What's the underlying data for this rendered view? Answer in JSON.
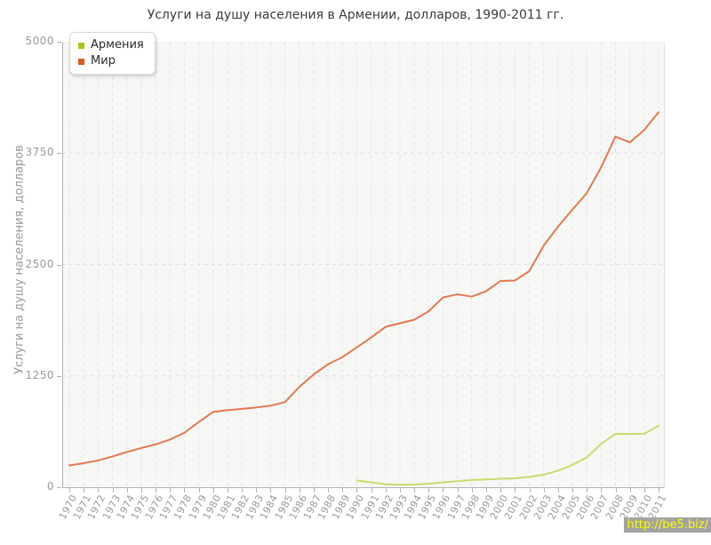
{
  "title": "Услуги на душу населения в Армении, долларов, 1990-2011 гг.",
  "y_axis_label": "Услуги на душу населения, долларов",
  "legend": {
    "items": [
      {
        "label": "Армения",
        "color": "#a6c813"
      },
      {
        "label": "Мир",
        "color": "#dc5a1e"
      }
    ]
  },
  "watermark": {
    "text": "http://be5.biz/",
    "bg": "#a3a3a3",
    "fg": "#fdfd00"
  },
  "chart_data": {
    "type": "line",
    "title": "Услуги на душу населения в Армении, долларов, 1990-2011 гг.",
    "xlabel": "",
    "ylabel": "Услуги на душу населения, долларов",
    "x": [
      1970,
      1971,
      1972,
      1973,
      1974,
      1975,
      1976,
      1977,
      1978,
      1979,
      1980,
      1981,
      1982,
      1983,
      1984,
      1985,
      1986,
      1987,
      1988,
      1989,
      1990,
      1991,
      1992,
      1993,
      1994,
      1995,
      1996,
      1997,
      1998,
      1999,
      2000,
      2001,
      2002,
      2003,
      2004,
      2005,
      2006,
      2007,
      2008,
      2009,
      2010,
      2011
    ],
    "ylim": [
      0,
      5000
    ],
    "yticks": [
      0,
      1250,
      2500,
      3750,
      5000
    ],
    "grid": true,
    "legend_position": "top-left",
    "series": [
      {
        "id": "armenia",
        "name": "Армения",
        "legend_color": "#a6c813",
        "line_color": "#c6dd6b",
        "values": [
          null,
          null,
          null,
          null,
          null,
          null,
          null,
          null,
          null,
          null,
          null,
          null,
          null,
          null,
          null,
          null,
          null,
          null,
          null,
          null,
          75,
          55,
          32,
          27,
          30,
          40,
          55,
          68,
          80,
          87,
          95,
          100,
          116,
          140,
          185,
          250,
          335,
          485,
          600,
          598,
          600,
          690
        ]
      },
      {
        "id": "mir",
        "name": "Мир",
        "legend_color": "#dc5a1e",
        "line_color": "#e2794f",
        "values": [
          245,
          270,
          300,
          345,
          395,
          440,
          480,
          535,
          610,
          730,
          845,
          865,
          880,
          895,
          915,
          955,
          1125,
          1265,
          1380,
          1460,
          1570,
          1680,
          1800,
          1840,
          1880,
          1975,
          2130,
          2165,
          2140,
          2200,
          2315,
          2320,
          2425,
          2710,
          2925,
          3115,
          3300,
          3590,
          3935,
          3870,
          4010,
          4210
        ]
      }
    ]
  }
}
